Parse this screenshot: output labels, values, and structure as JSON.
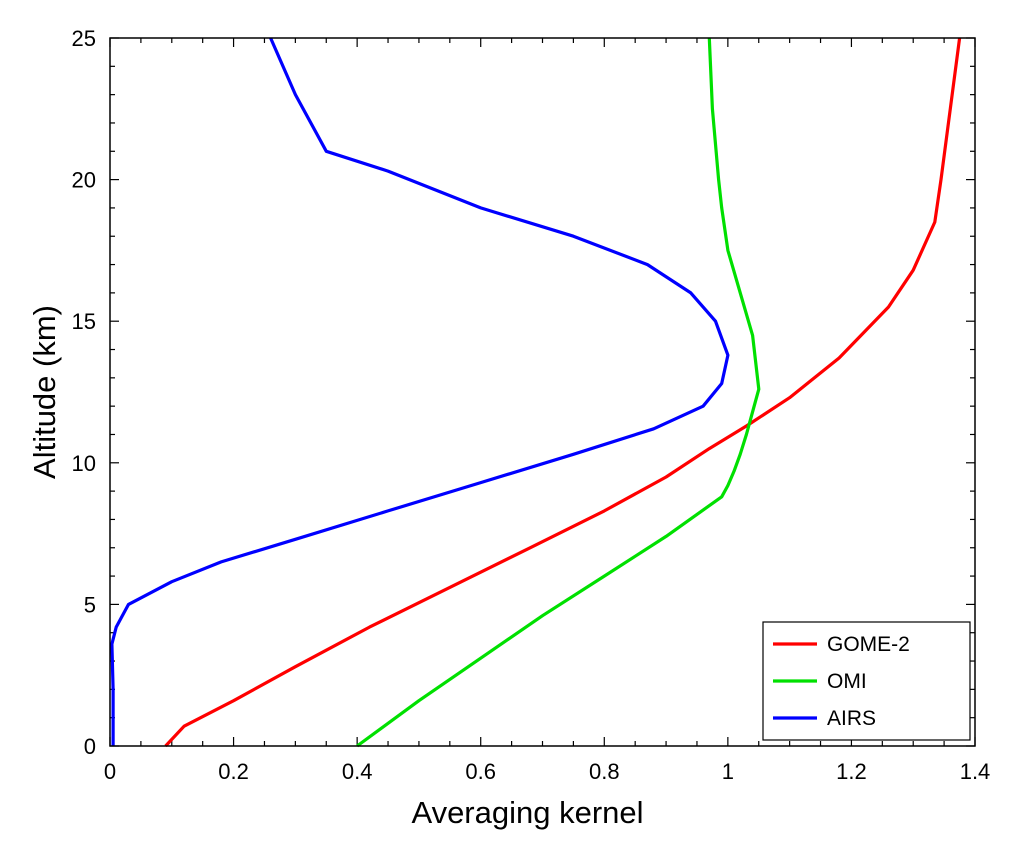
{
  "chart_data": {
    "type": "line",
    "title": "",
    "xlabel": "Averaging kernel",
    "ylabel": "Altitude (km)",
    "xlim": [
      0,
      1.4
    ],
    "ylim": [
      0,
      25
    ],
    "xticks": [
      "0",
      "0.2",
      "0.4",
      "0.6",
      "0.8",
      "1",
      "1.2",
      "1.4"
    ],
    "yticks": [
      "0",
      "5",
      "10",
      "15",
      "20",
      "25"
    ],
    "grid": false,
    "legend_position": "bottom-right",
    "series": [
      {
        "name": "GOME-2",
        "color": "#ff0000",
        "x": [
          0.09,
          0.12,
          0.2,
          0.3,
          0.42,
          0.55,
          0.68,
          0.8,
          0.9,
          0.97,
          1.03,
          1.1,
          1.18,
          1.26,
          1.3,
          1.335,
          1.345,
          1.36,
          1.375
        ],
        "y": [
          0,
          0.7,
          1.6,
          2.8,
          4.2,
          5.6,
          7.0,
          8.3,
          9.5,
          10.5,
          11.3,
          12.3,
          13.7,
          15.5,
          16.8,
          18.5,
          20.0,
          22.5,
          25.0
        ]
      },
      {
        "name": "OMI",
        "color": "#00e000",
        "x": [
          0.4,
          0.5,
          0.6,
          0.7,
          0.8,
          0.9,
          0.99,
          1.0,
          1.01,
          1.02,
          1.03,
          1.04,
          1.05,
          1.04,
          1.0,
          0.99,
          0.985,
          0.975,
          0.97
        ],
        "y": [
          0,
          1.6,
          3.1,
          4.6,
          6.0,
          7.4,
          8.8,
          9.2,
          9.7,
          10.3,
          11.0,
          11.8,
          12.6,
          14.5,
          17.5,
          19.0,
          20.0,
          22.5,
          25.0
        ]
      },
      {
        "name": "AIRS",
        "color": "#0000ff",
        "x": [
          0.005,
          0.005,
          0.003,
          0.01,
          0.03,
          0.1,
          0.18,
          0.3,
          0.45,
          0.6,
          0.75,
          0.88,
          0.96,
          0.99,
          1.0,
          0.98,
          0.94,
          0.87,
          0.75,
          0.6,
          0.45,
          0.35,
          0.3,
          0.26
        ],
        "y": [
          0,
          2.0,
          3.6,
          4.2,
          5.0,
          5.8,
          6.5,
          7.3,
          8.3,
          9.3,
          10.3,
          11.2,
          12.0,
          12.8,
          13.8,
          15.0,
          16.0,
          17.0,
          18.0,
          19.0,
          20.3,
          21.0,
          23.0,
          25.0
        ]
      }
    ]
  }
}
